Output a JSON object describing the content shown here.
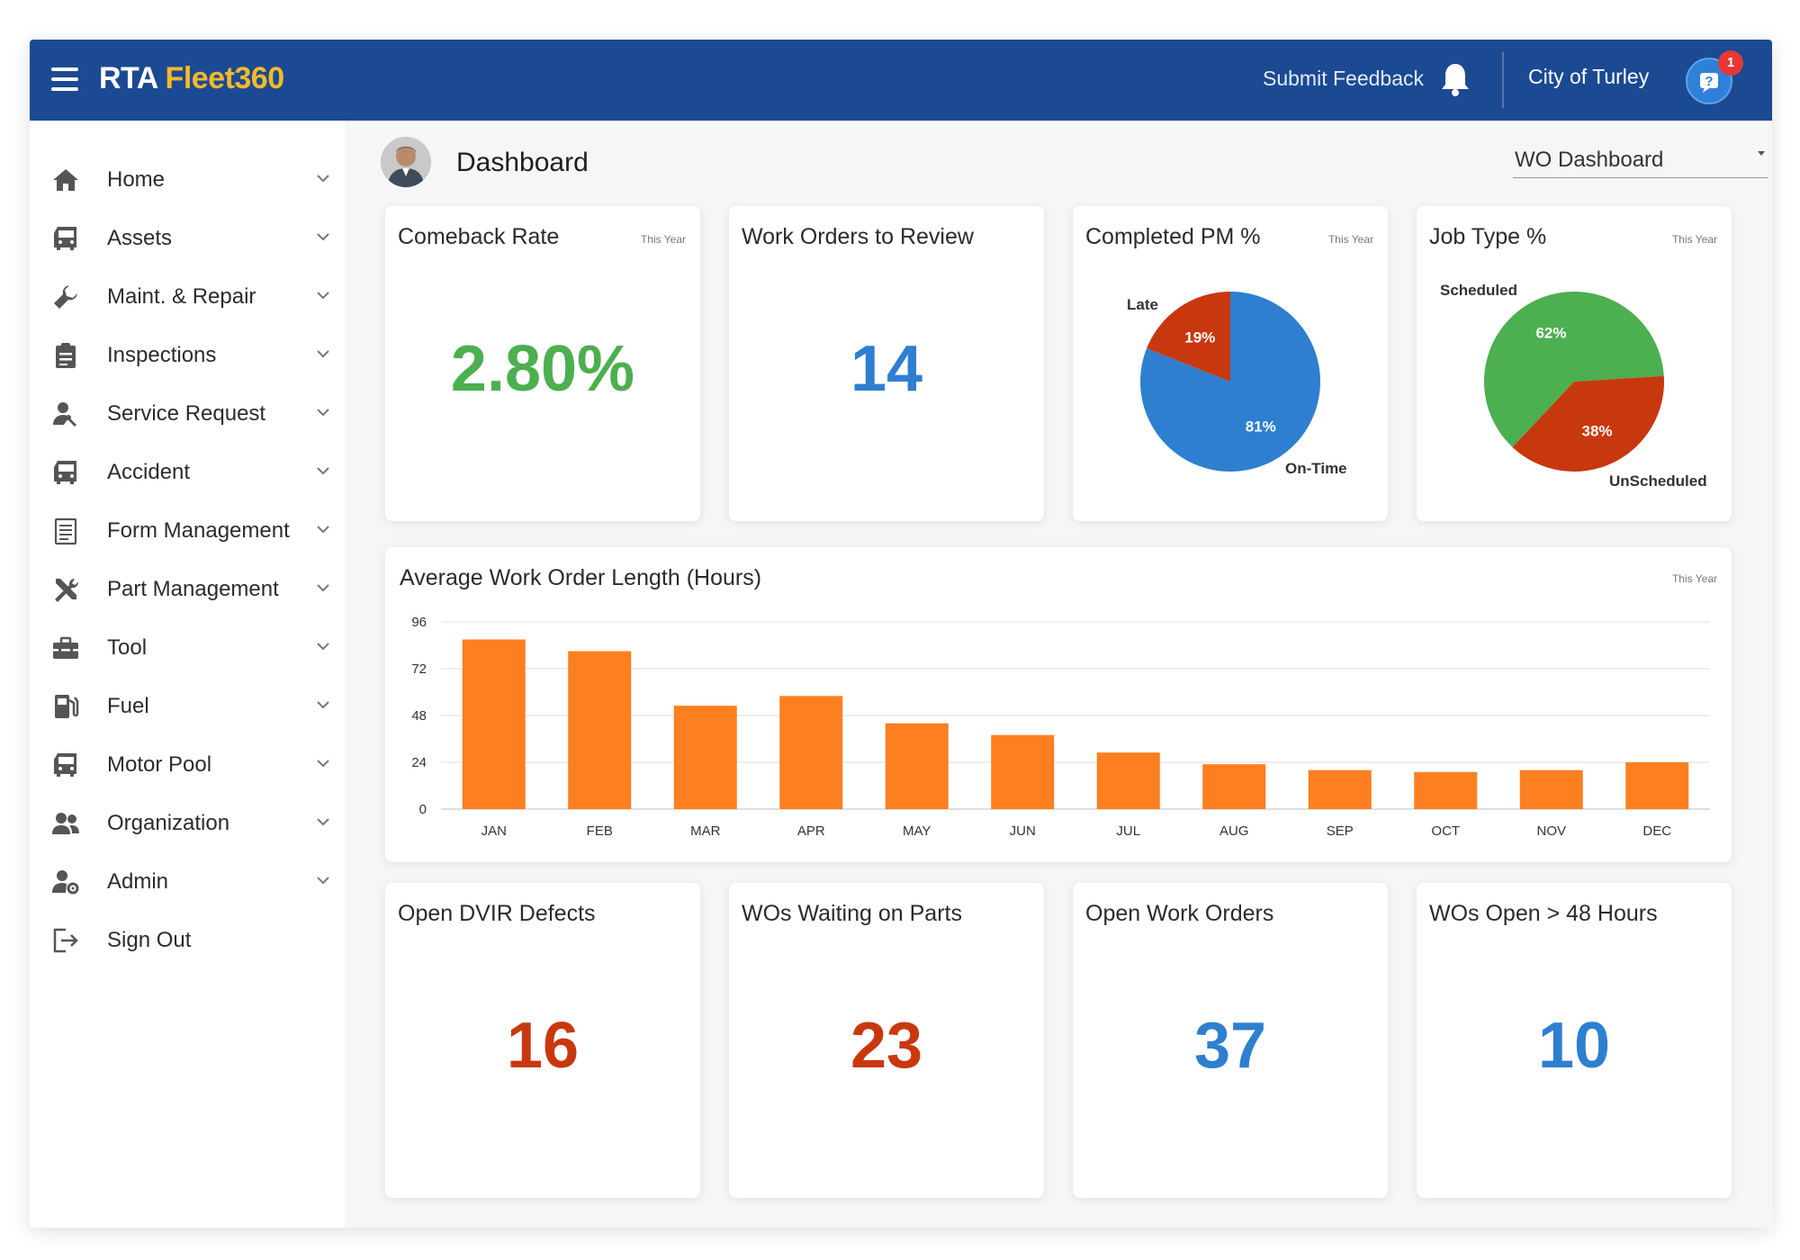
{
  "header": {
    "logo_part1": "RTA",
    "logo_part2": "Fleet360",
    "feedback_label": "Submit Feedback",
    "city_label": "City of Turley",
    "notification_count": "1"
  },
  "sidebar": {
    "items": [
      {
        "label": "Home",
        "icon": "home-icon"
      },
      {
        "label": "Assets",
        "icon": "vehicle-icon"
      },
      {
        "label": "Maint. & Repair",
        "icon": "wrench-icon"
      },
      {
        "label": "Inspections",
        "icon": "clipboard-icon"
      },
      {
        "label": "Service Request",
        "icon": "person-wrench-icon"
      },
      {
        "label": "Accident",
        "icon": "vehicle-icon"
      },
      {
        "label": "Form Management",
        "icon": "form-icon"
      },
      {
        "label": "Part Management",
        "icon": "tools-icon"
      },
      {
        "label": "Tool",
        "icon": "toolbox-icon"
      },
      {
        "label": "Fuel",
        "icon": "fuel-icon"
      },
      {
        "label": "Motor Pool",
        "icon": "vehicle-icon"
      },
      {
        "label": "Organization",
        "icon": "group-icon"
      },
      {
        "label": "Admin",
        "icon": "admin-gear-icon"
      },
      {
        "label": "Sign Out",
        "icon": "sign-out-icon"
      }
    ]
  },
  "main": {
    "page_title": "Dashboard",
    "dashboard_select": "WO Dashboard"
  },
  "cards": {
    "comeback": {
      "title": "Comeback Rate",
      "period": "This Year",
      "value": "2.80%"
    },
    "review": {
      "title": "Work Orders to Review",
      "value": "14"
    },
    "pm": {
      "title": "Completed PM %",
      "period": "This Year",
      "late_label": "Late",
      "ontime_label": "On-Time",
      "late_pct": "19%",
      "ontime_pct": "81%"
    },
    "jobtype": {
      "title": "Job Type %",
      "period": "This Year",
      "sched_label": "Scheduled",
      "unsched_label": "UnScheduled",
      "sched_pct": "62%",
      "unsched_pct": "38%"
    },
    "dvir": {
      "title": "Open DVIR Defects",
      "value": "16"
    },
    "waiting": {
      "title": "WOs Waiting on Parts",
      "value": "23"
    },
    "open": {
      "title": "Open Work Orders",
      "value": "37"
    },
    "open48": {
      "title": "WOs Open > 48 Hours",
      "value": "10"
    }
  },
  "colors": {
    "header": "#1b4a93",
    "accent_orange": "#fd7f20",
    "green": "#4caf50",
    "blue": "#2e7fd0",
    "red": "#c8380f"
  },
  "chart_data": [
    {
      "type": "bar",
      "title": "Average Work Order Length (Hours)",
      "period": "This Year",
      "categories": [
        "JAN",
        "FEB",
        "MAR",
        "APR",
        "MAY",
        "JUN",
        "JUL",
        "AUG",
        "SEP",
        "OCT",
        "NOV",
        "DEC"
      ],
      "values": [
        87,
        81,
        53,
        58,
        44,
        38,
        29,
        23,
        20,
        19,
        20,
        24
      ],
      "ylim": [
        0,
        96
      ],
      "yticks": [
        0,
        24,
        48,
        72,
        96
      ],
      "grid": true,
      "legend": "none"
    },
    {
      "type": "pie",
      "title": "Completed PM %",
      "labels": [
        "On-Time",
        "Late"
      ],
      "values": [
        81,
        19
      ]
    },
    {
      "type": "pie",
      "title": "Job Type %",
      "labels": [
        "Scheduled",
        "UnScheduled"
      ],
      "values": [
        62,
        38
      ]
    }
  ]
}
